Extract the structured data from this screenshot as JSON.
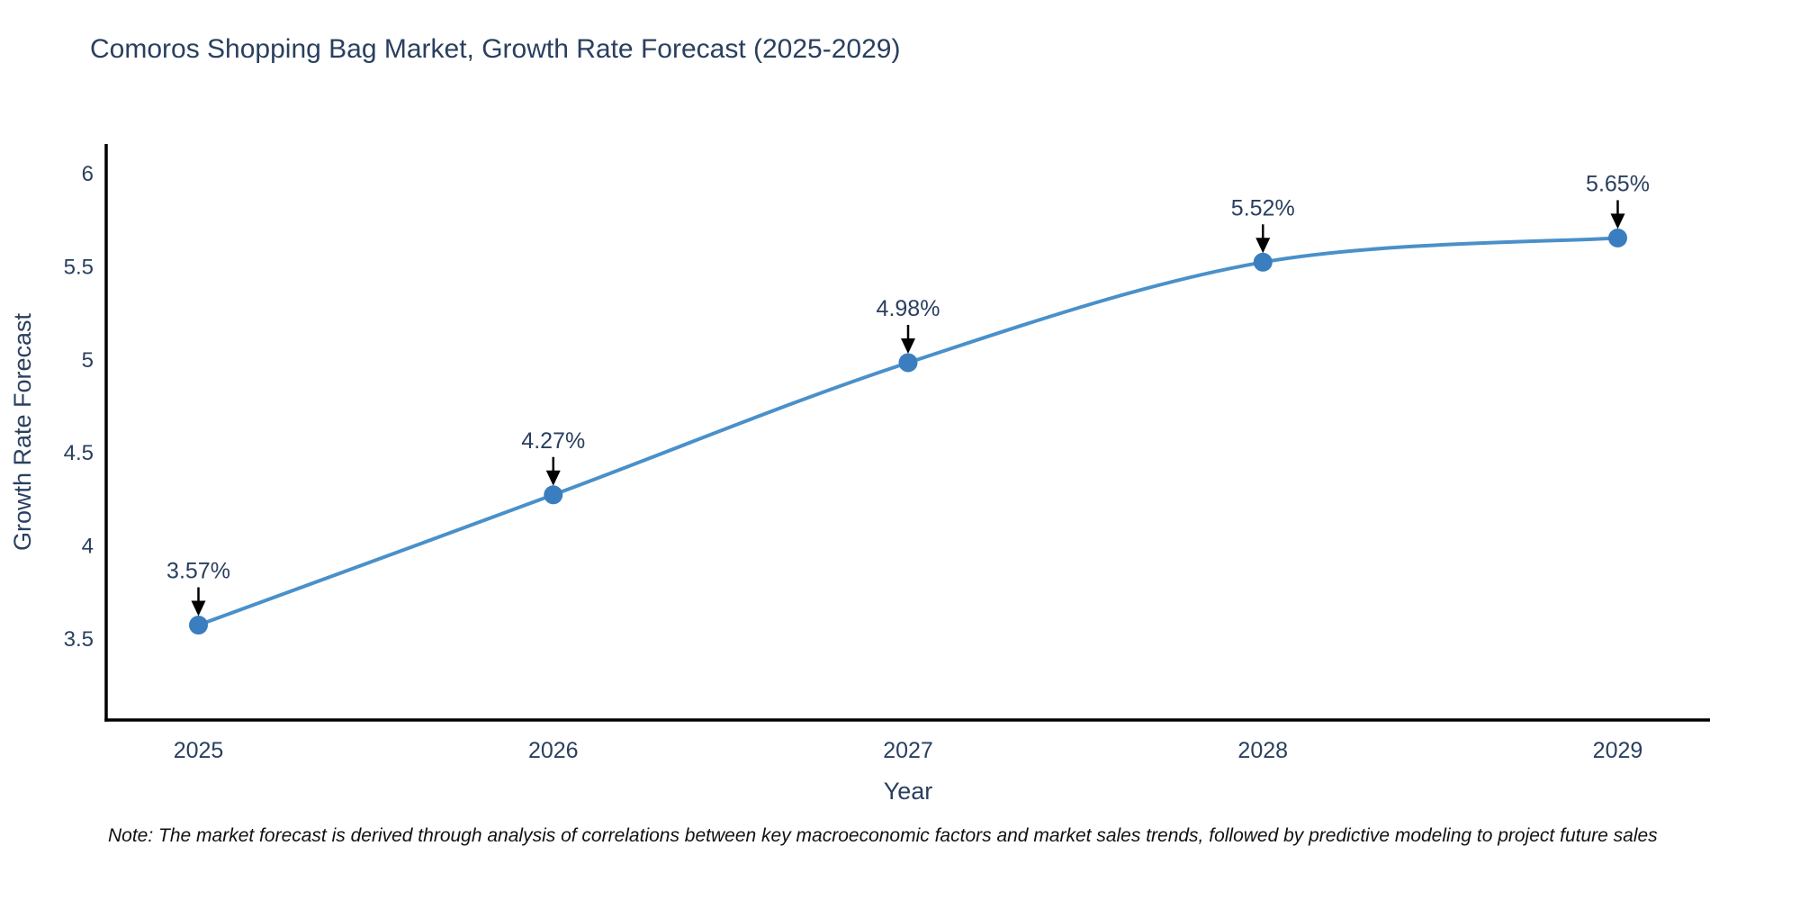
{
  "title": "Comoros Shopping Bag Market, Growth Rate Forecast (2025-2029)",
  "note": "Note: The market forecast is derived through analysis of correlations between key macroeconomic factors and market sales trends, followed by predictive modeling to project future sales",
  "chart_data": {
    "type": "line",
    "title": "Comoros Shopping Bag Market, Growth Rate Forecast (2025-2029)",
    "x": [
      2025,
      2026,
      2027,
      2028,
      2029
    ],
    "values": [
      3.57,
      4.27,
      4.98,
      5.52,
      5.65
    ],
    "point_labels": [
      "3.57%",
      "4.27%",
      "4.98%",
      "5.52%",
      "5.65%"
    ],
    "xtick_labels": [
      "2025",
      "2026",
      "2027",
      "2028",
      "2029"
    ],
    "yticks": [
      3.5,
      4,
      4.5,
      5,
      5.5,
      6
    ],
    "ytick_labels": [
      "3.5",
      "4",
      "4.5",
      "5",
      "5.5",
      "6"
    ],
    "xlabel": "Year",
    "ylabel": "Growth Rate Forecast",
    "xlim": [
      2024.74,
      2029.26
    ],
    "ylim": [
      3.06,
      6.155
    ],
    "grid": false,
    "legend": "none",
    "line_shape": "spline",
    "annotation_style": "arrow-down-to-point",
    "colors": {
      "line": "#4a90c9",
      "marker": "#3a7ebf",
      "axis": "#000000",
      "text": "#2a3f5f",
      "arrow": "#000000",
      "background": "#ffffff"
    }
  }
}
